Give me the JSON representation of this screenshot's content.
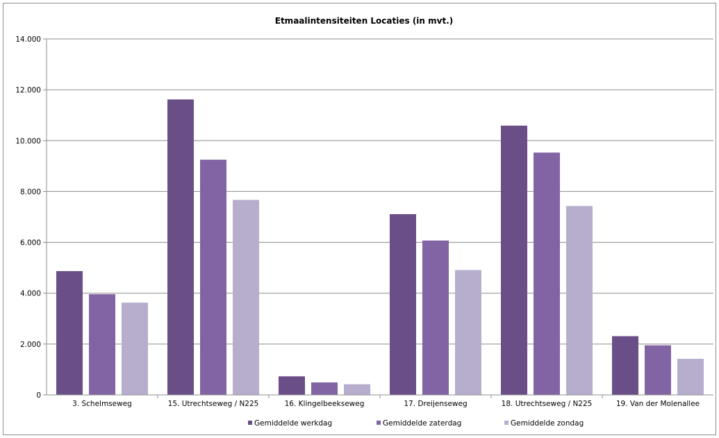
{
  "chart_data": {
    "type": "bar",
    "title": "Etmaalintensiteiten Locaties (in mvt.)",
    "xlabel": "",
    "ylabel": "",
    "ylim": [
      0,
      14000
    ],
    "yticks": [
      0,
      2000,
      4000,
      6000,
      8000,
      10000,
      12000,
      14000
    ],
    "ytick_labels": [
      "0",
      "2.000",
      "4.000",
      "6.000",
      "8.000",
      "10.000",
      "12.000",
      "14.000"
    ],
    "grid": true,
    "legend_position": "bottom",
    "categories": [
      "3. Schelmseweg",
      "15. Utrechtseweg / N225",
      "16. Klingelbeekseweg",
      "17. Dreijenseweg",
      "18. Utrechtseweg / N225",
      "19. Van der Molenallee"
    ],
    "series": [
      {
        "name": "Gemiddelde werkdag",
        "color": "#6a4e87",
        "values": [
          4870,
          11620,
          730,
          7110,
          10590,
          2310
        ]
      },
      {
        "name": "Gemiddelde zaterdag",
        "color": "#8263a3",
        "values": [
          3960,
          9250,
          490,
          6070,
          9530,
          1950
        ]
      },
      {
        "name": "Gemiddelde zondag",
        "color": "#b7aecd",
        "values": [
          3630,
          7670,
          420,
          4910,
          7430,
          1420
        ]
      }
    ]
  }
}
